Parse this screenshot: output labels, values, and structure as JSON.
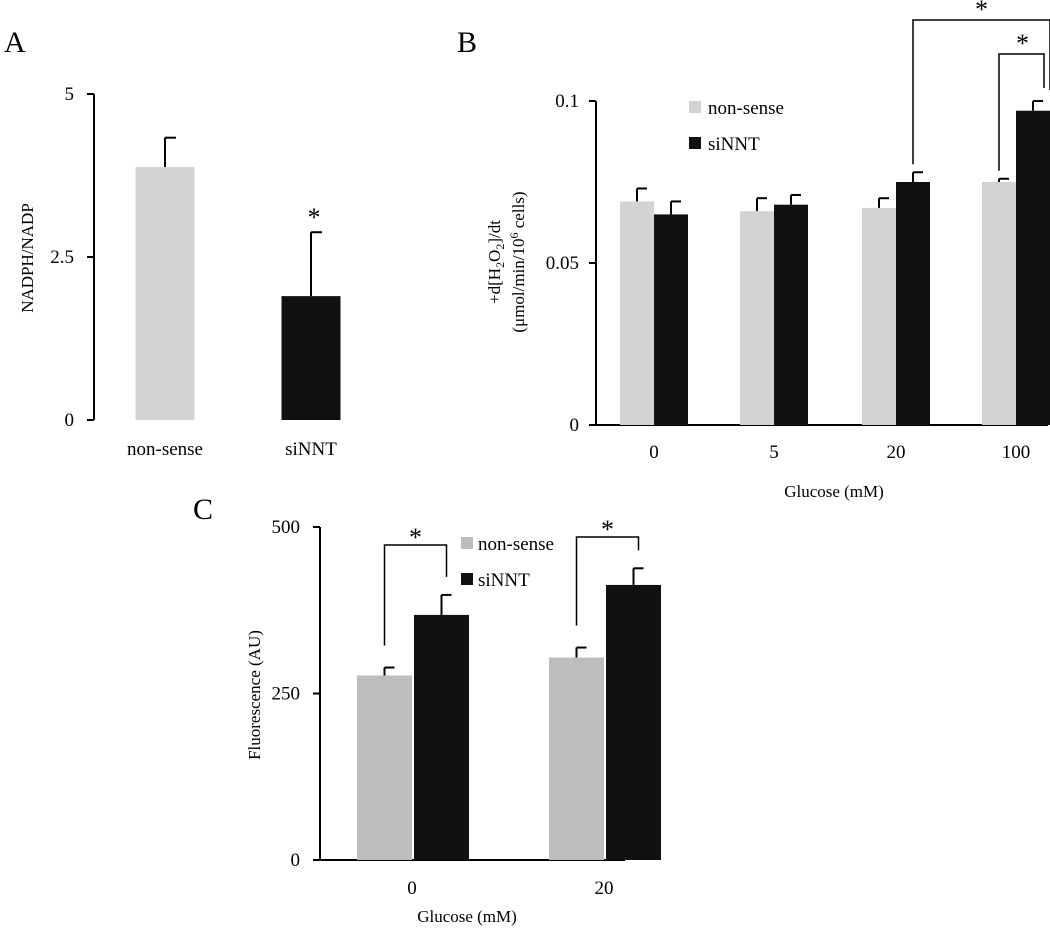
{
  "panels": [
    {
      "letter": "A"
    },
    {
      "letter": "B"
    },
    {
      "letter": "C"
    }
  ],
  "chart_data": [
    {
      "type": "bar",
      "categories": [
        "non-sense",
        "siNNT"
      ],
      "series": [
        {
          "values": [
            3.88,
            1.9
          ],
          "errors": [
            0.45,
            0.98
          ],
          "colors": [
            "#d3d3d3",
            "#111111"
          ]
        }
      ],
      "ylabel": "NADPH/NADP",
      "xlabel": "",
      "ylim": [
        0,
        5
      ],
      "yticks": [
        "0",
        "2.5",
        "5"
      ],
      "annotations": [
        {
          "text": "*",
          "target": "siNNT"
        }
      ]
    },
    {
      "type": "bar",
      "categories": [
        "0",
        "5",
        "20",
        "100"
      ],
      "series": [
        {
          "name": "non-sense",
          "values": [
            0.069,
            0.066,
            0.067,
            0.075
          ],
          "errors": [
            0.004,
            0.004,
            0.003,
            0.001
          ],
          "color": "#d3d3d3"
        },
        {
          "name": "siNNT",
          "values": [
            0.065,
            0.068,
            0.075,
            0.097
          ],
          "errors": [
            0.004,
            0.003,
            0.003,
            0.003
          ],
          "color": "#111111"
        }
      ],
      "ylabel_line1": "+d[H2O2]/dt",
      "ylabel_line2": "(μmol/min/106 cells)",
      "xlabel": "Glucose (mM)",
      "ylim": [
        0,
        0.1
      ],
      "yticks": [
        "0",
        "0.05",
        "0.1"
      ],
      "legend": "top-left",
      "annotations": [
        {
          "text": "*",
          "between": [
            "20 siNNT",
            "100 siNNT"
          ]
        },
        {
          "text": "*",
          "between": [
            "100 non-sense",
            "100 siNNT"
          ]
        }
      ]
    },
    {
      "type": "bar",
      "categories": [
        "0",
        "20"
      ],
      "series": [
        {
          "name": "non-sense",
          "values": [
            277,
            304
          ],
          "errors": [
            12,
            15
          ],
          "color": "#bdbdbd"
        },
        {
          "name": "siNNT",
          "values": [
            368,
            413
          ],
          "errors": [
            30,
            25
          ],
          "color": "#111111"
        }
      ],
      "ylabel": "Fluorescence (AU)",
      "xlabel": "Glucose (mM)",
      "ylim": [
        0,
        500
      ],
      "yticks": [
        "0",
        "250",
        "500"
      ],
      "legend": "top-left",
      "annotations": [
        {
          "text": "*",
          "between": [
            "0 non-sense",
            "0 siNNT"
          ]
        },
        {
          "text": "*",
          "between": [
            "20 non-sense",
            "20 siNNT"
          ]
        }
      ]
    }
  ]
}
